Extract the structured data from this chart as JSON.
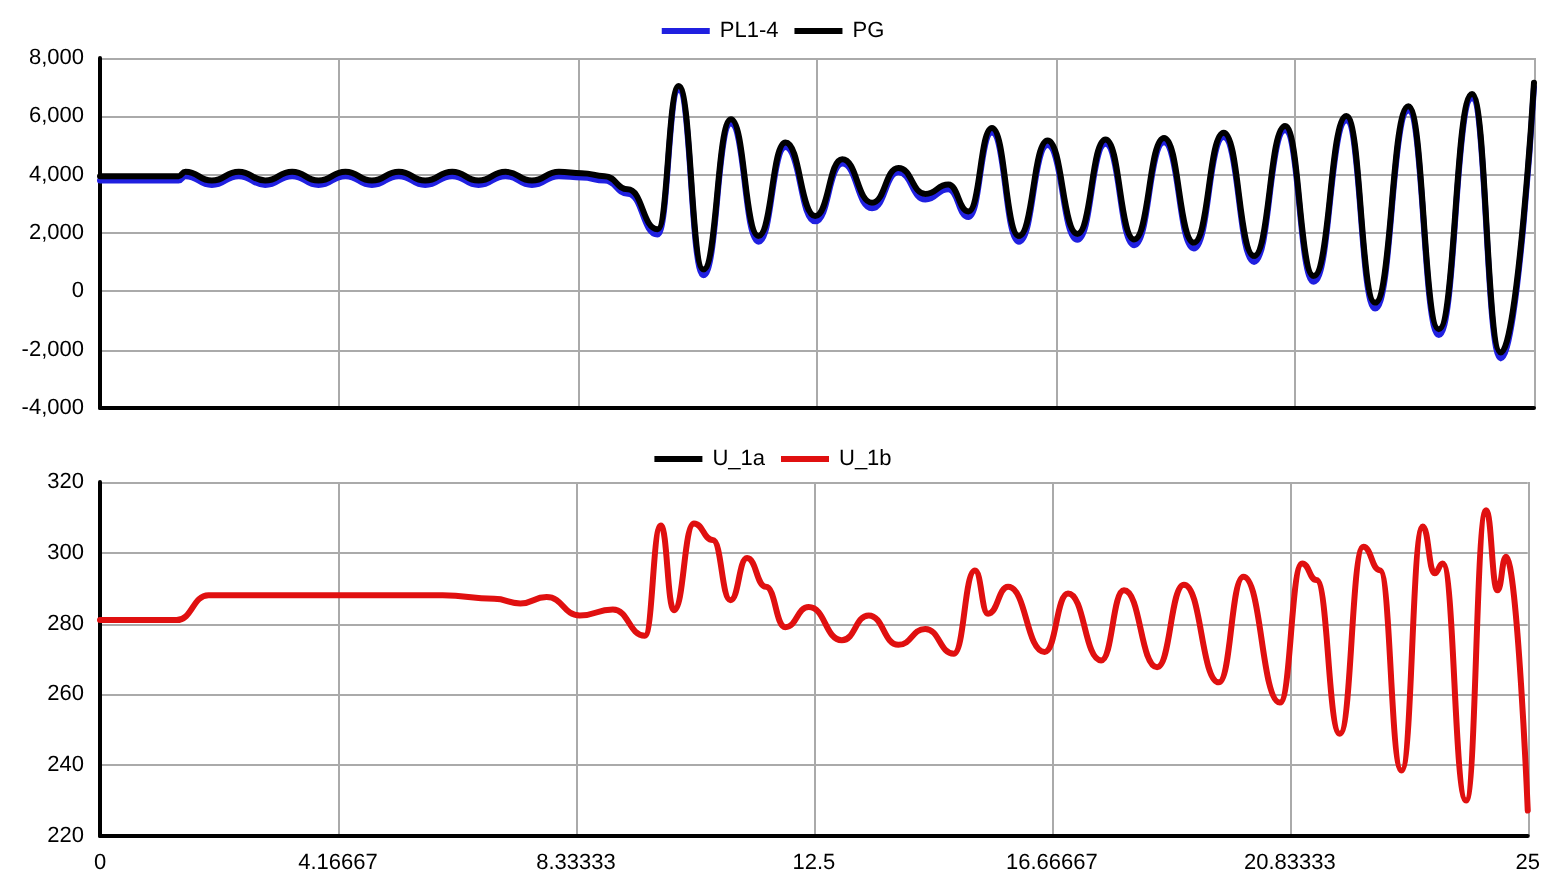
{
  "chart_data": [
    {
      "type": "line",
      "legend": "top",
      "grid": true,
      "tick_labels": "y",
      "marker": "none",
      "line_style": "solid",
      "xlim": [
        0,
        25
      ],
      "xticks": [
        0,
        4.16667,
        8.33333,
        12.5,
        16.66667,
        20.83333,
        25
      ],
      "ylim": [
        -4000,
        8000
      ],
      "yticks": [
        {
          "value": -4000,
          "label": "-4,000"
        },
        {
          "value": -2000,
          "label": "-2,000"
        },
        0,
        {
          "value": 2000,
          "label": "2,000"
        },
        {
          "value": 4000,
          "label": "4,000"
        },
        {
          "value": 6000,
          "label": "6,000"
        },
        {
          "value": 8000,
          "label": "8,000"
        }
      ],
      "x": [
        0,
        1.37,
        1.49,
        1.95,
        2.42,
        2.88,
        3.35,
        3.81,
        4.28,
        4.74,
        5.21,
        5.67,
        6.14,
        6.6,
        7.07,
        7.53,
        8.0,
        8.4,
        8.8,
        9.2,
        9.72,
        10.09,
        10.52,
        11.0,
        11.48,
        11.95,
        12.47,
        12.94,
        13.46,
        13.92,
        14.39,
        14.79,
        15.14,
        15.55,
        16.02,
        16.52,
        17.04,
        17.53,
        18.03,
        18.55,
        19.07,
        19.59,
        20.12,
        20.66,
        21.16,
        21.73,
        22.23,
        22.81,
        23.34,
        23.92,
        24.42,
        25
      ],
      "series": [
        {
          "name": "PL1-4",
          "color": "#2020e0",
          "values": [
            3800,
            3800,
            3950,
            3650,
            3950,
            3650,
            3950,
            3650,
            3950,
            3650,
            3950,
            3650,
            3950,
            3650,
            3950,
            3650,
            3950,
            3900,
            3800,
            3350,
            1950,
            6900,
            550,
            5750,
            1700,
            4950,
            2400,
            4380,
            2850,
            4080,
            3150,
            3500,
            2550,
            5450,
            1700,
            5020,
            1770,
            5060,
            1580,
            5110,
            1470,
            5290,
            1010,
            5520,
            330,
            5860,
            -590,
            6200,
            -1500,
            6620,
            -2300,
            7000
          ]
        },
        {
          "name": "PG",
          "color": "#000000",
          "values": [
            3950,
            3950,
            4100,
            3800,
            4100,
            3800,
            4100,
            3800,
            4100,
            3800,
            4100,
            3800,
            4100,
            3800,
            4100,
            3800,
            4100,
            4050,
            3950,
            3500,
            2130,
            7040,
            750,
            5900,
            1900,
            5100,
            2580,
            4530,
            3040,
            4230,
            3340,
            3660,
            2740,
            5600,
            1900,
            5170,
            1970,
            5210,
            1780,
            5260,
            1670,
            5440,
            1210,
            5670,
            530,
            6010,
            -390,
            6350,
            -1300,
            6770,
            -2100,
            7150
          ]
        }
      ]
    },
    {
      "type": "line",
      "legend": "top",
      "grid": true,
      "marker": "none",
      "line_style": "solid",
      "xlim": [
        0,
        25
      ],
      "xticks": [
        0,
        {
          "value": 4.16667,
          "label": "4.16667"
        },
        {
          "value": 8.33333,
          "label": "8.33333"
        },
        12.5,
        {
          "value": 16.66667,
          "label": "16.66667"
        },
        {
          "value": 20.83333,
          "label": "20.83333"
        },
        25
      ],
      "ylim": [
        220,
        320
      ],
      "yticks": [
        220,
        240,
        260,
        280,
        300,
        320
      ],
      "x": [
        0,
        1.34,
        1.9,
        3.0,
        4.5,
        6.0,
        6.9,
        7.36,
        7.82,
        8.4,
        8.98,
        9.54,
        9.82,
        10.05,
        10.4,
        10.73,
        11.04,
        11.33,
        11.66,
        12.0,
        12.41,
        12.99,
        13.46,
        13.98,
        14.45,
        14.95,
        15.32,
        15.55,
        15.9,
        16.54,
        16.95,
        17.53,
        17.93,
        18.51,
        18.98,
        19.59,
        20.02,
        20.66,
        21.05,
        21.3,
        21.71,
        22.12,
        22.41,
        22.79,
        23.16,
        23.37,
        23.51,
        23.92,
        24.27,
        24.47,
        24.62,
        25
      ],
      "series": [
        {
          "name": "U_1a",
          "color": "#000000",
          "values": [
            null,
            null,
            null,
            null,
            null,
            null,
            null,
            null,
            null,
            null,
            null,
            null,
            null,
            null,
            null,
            null,
            null,
            null,
            null,
            null,
            null,
            null,
            null,
            null,
            null,
            null,
            null,
            null,
            null,
            null,
            null,
            null,
            null,
            null,
            null,
            null,
            null,
            null,
            null,
            null,
            null,
            null,
            null,
            null,
            null,
            null,
            null,
            null,
            null,
            null,
            null,
            null
          ]
        },
        {
          "name": "U_1b",
          "color": "#e01010",
          "values": [
            281,
            281,
            288,
            288,
            288,
            288,
            287,
            285.7,
            287.5,
            282.3,
            284,
            276.6,
            307.7,
            283.8,
            308.3,
            303.6,
            286.6,
            298.5,
            290.4,
            279,
            284.7,
            275.3,
            282.3,
            274,
            278.5,
            271.5,
            295,
            282.8,
            290.4,
            272,
            288.5,
            269.6,
            289.4,
            267.7,
            291,
            263.4,
            293.2,
            257.7,
            297,
            292.3,
            248.9,
            301.7,
            295.1,
            238.5,
            307.4,
            294.2,
            297,
            230,
            312,
            289.4,
            298.9,
            227.2
          ]
        }
      ]
    }
  ]
}
